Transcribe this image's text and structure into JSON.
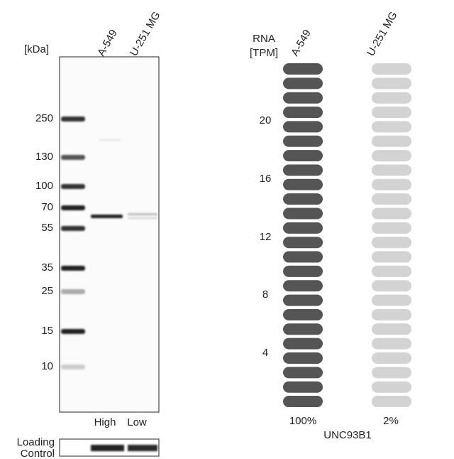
{
  "blot": {
    "unit_label": "[kDa]",
    "lanes": [
      "A-549",
      "U-251 MG"
    ],
    "markers": [
      "250",
      "130",
      "100",
      "70",
      "55",
      "35",
      "25",
      "15",
      "10"
    ],
    "lane_levels": [
      "High",
      "Low"
    ],
    "loading_control": [
      "Loading",
      "Control"
    ]
  },
  "rna": {
    "axis_label": [
      "RNA",
      "[TPM]"
    ],
    "cell_lines": [
      "A-549",
      "U-251 MG"
    ],
    "ticks": [
      "20",
      "16",
      "12",
      "8",
      "4"
    ],
    "percentages": [
      "100%",
      "2%"
    ],
    "gene": "UNC93B1"
  }
}
